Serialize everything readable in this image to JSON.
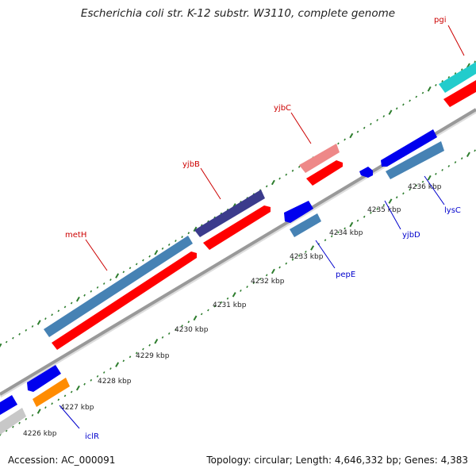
{
  "title": "Escherichia coli str. K-12 substr. W3110, complete genome",
  "accession": "Accession: AC_000091",
  "summary": "Topology: circular; Length: 4,646,332 bp; Genes: 4,383",
  "tick_labels": [
    "4226 kbp",
    "4227 kbp",
    "4228 kbp",
    "4229 kbp",
    "4230 kbp",
    "4231 kbp",
    "4232 kbp",
    "4233 kbp",
    "4234 kbp",
    "4235 kbp",
    "4236 kbp"
  ],
  "gene_labels": {
    "pgi": "pgi",
    "yjbC": "yjbC",
    "yjbB": "yjbB",
    "metH": "metH",
    "lysC": "lysC",
    "yjbD": "yjbD",
    "pepE": "pepE",
    "iclR": "iclR"
  },
  "colors": {
    "forward_label": "#cc0000",
    "reverse_label": "#0000cc",
    "tick": "#2d7d2d",
    "backbone": "#999999"
  }
}
